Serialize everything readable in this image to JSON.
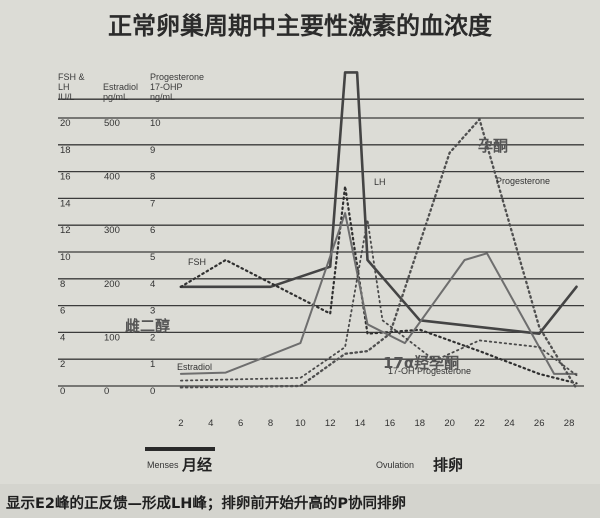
{
  "chart_data": {
    "type": "line",
    "title": "正常卵巢周期中主要性激素的血浓度",
    "axis_headers": {
      "fsh_lh": [
        "FSH &",
        "LH",
        "IU/L"
      ],
      "estradiol": [
        "Estradiol",
        "pg/mL"
      ],
      "progesterone": [
        "Progesterone",
        "17-OHP",
        "ng/mL"
      ]
    },
    "y_ticks": {
      "fsh_lh": [
        "20",
        "18",
        "16",
        "14",
        "12",
        "10",
        "8",
        "6",
        "4",
        "2",
        "0"
      ],
      "estradiol": [
        "500",
        "400",
        "300",
        "200",
        "100",
        "0"
      ],
      "progesterone": [
        "10",
        "9",
        "8",
        "7",
        "6",
        "5",
        "4",
        "3",
        "2",
        "1",
        "0"
      ]
    },
    "y_grid_values": [
      20,
      18,
      16,
      14,
      12,
      10,
      8,
      6,
      4,
      2,
      0
    ],
    "x_ticks": [
      "2",
      "4",
      "6",
      "8",
      "10",
      "12",
      "14",
      "16",
      "18",
      "20",
      "22",
      "24",
      "26",
      "28"
    ],
    "x_values": [
      2,
      4,
      6,
      8,
      10,
      12,
      14,
      16,
      18,
      20,
      22,
      24,
      26,
      28
    ],
    "xlim": [
      1,
      29
    ],
    "ylim": [
      0,
      24
    ],
    "grid": "horizontal",
    "series": [
      {
        "name": "LH",
        "style": "solid",
        "color": "#444444",
        "width": 2.6,
        "points": [
          [
            2,
            8
          ],
          [
            8,
            8
          ],
          [
            12,
            9.5
          ],
          [
            13,
            24
          ],
          [
            13.8,
            24
          ],
          [
            14.5,
            10
          ],
          [
            18,
            5.5
          ],
          [
            26,
            4.5
          ],
          [
            28.5,
            8
          ]
        ]
      },
      {
        "name": "FSH",
        "style": "dotted",
        "color": "#303030",
        "width": 2.2,
        "points": [
          [
            2,
            8
          ],
          [
            5,
            10
          ],
          [
            12,
            6
          ],
          [
            13,
            15.5
          ],
          [
            14.5,
            4.5
          ],
          [
            18,
            4.8
          ],
          [
            22,
            3.2
          ],
          [
            26,
            1.5
          ],
          [
            28.5,
            0.8
          ]
        ]
      },
      {
        "name": "Estradiol",
        "style": "solid",
        "color": "#6e6e6e",
        "width": 2.0,
        "points": [
          [
            2,
            1.5
          ],
          [
            5,
            1.6
          ],
          [
            10,
            3.8
          ],
          [
            13,
            13.5
          ],
          [
            14.5,
            5.2
          ],
          [
            17,
            3.8
          ],
          [
            21,
            10
          ],
          [
            22.5,
            10.5
          ],
          [
            27,
            1.5
          ],
          [
            28.5,
            1.5
          ]
        ]
      },
      {
        "name": "Progesterone",
        "style": "dotted",
        "color": "#505050",
        "width": 2.3,
        "points": [
          [
            2,
            0.5
          ],
          [
            10,
            0.6
          ],
          [
            13,
            3
          ],
          [
            14.5,
            3.2
          ],
          [
            16,
            4.5
          ],
          [
            20,
            18
          ],
          [
            22,
            20.5
          ],
          [
            26,
            5
          ],
          [
            28.5,
            0.4
          ]
        ]
      },
      {
        "name": "17-OHP",
        "style": "dotted",
        "color": "#4a4a4a",
        "width": 1.8,
        "points": [
          [
            2,
            1
          ],
          [
            10,
            1.2
          ],
          [
            13,
            3.5
          ],
          [
            14.5,
            13
          ],
          [
            15.5,
            5.5
          ],
          [
            19,
            2.5
          ],
          [
            22,
            4
          ],
          [
            26,
            3.5
          ],
          [
            28.5,
            1.4
          ]
        ]
      }
    ],
    "annotations": {
      "lh_en": "LH",
      "fsh_en": "FSH",
      "estradiol_en": "Estradiol",
      "progesterone_en": "Progesterone",
      "ohp_en": "17-OH Progesterone",
      "progesterone_zh": "孕酮",
      "estradiol_zh": "雌二醇",
      "ohp_zh": "17α羟孕酮",
      "menses_en": "Menses",
      "menses_zh": "月经",
      "ovulation_en": "Ovulation",
      "ovulation_zh": "排卵"
    },
    "footer": "显示E2峰的正反馈—形成LH峰；排卵前开始升高的P协同排卵"
  }
}
